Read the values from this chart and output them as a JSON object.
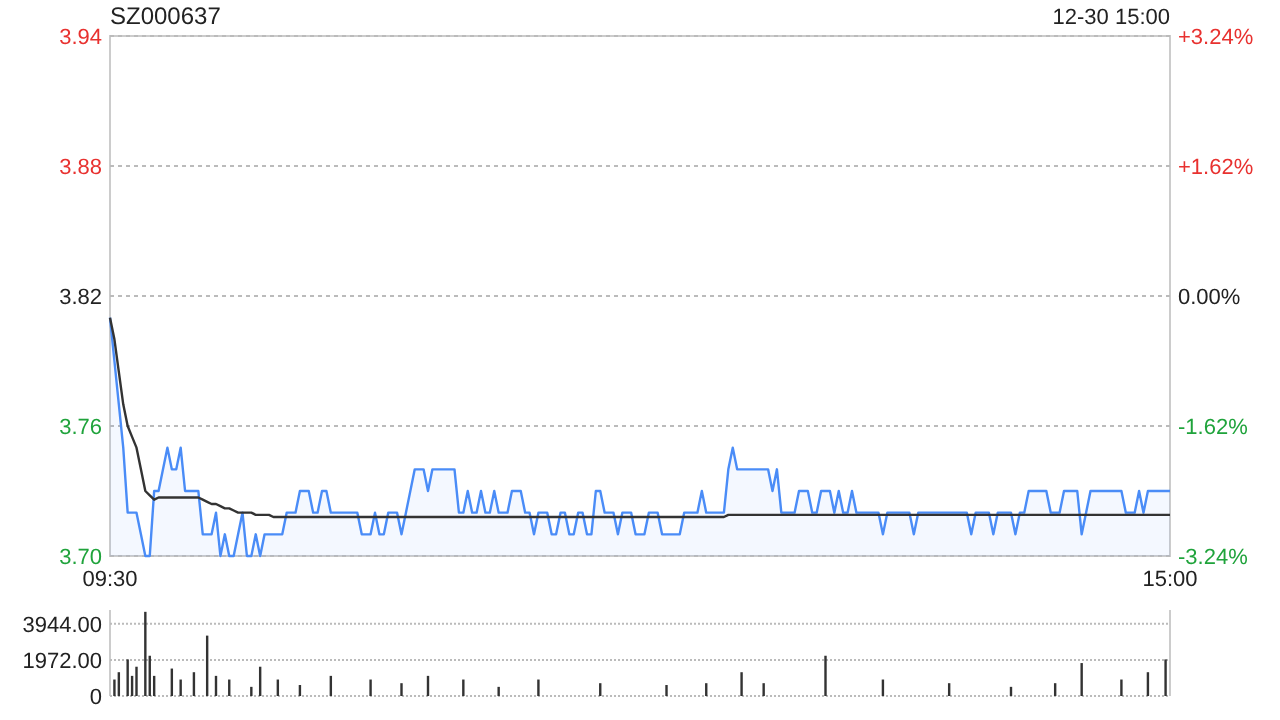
{
  "chart_data": [
    {
      "type": "line",
      "title": "SZ000637",
      "annotations": [
        "12-30 15:00"
      ],
      "categories": [
        "09:30",
        null,
        null,
        null,
        null,
        null,
        null,
        null,
        null,
        null,
        null,
        null,
        null,
        null,
        null,
        null,
        null,
        null,
        null,
        null,
        null,
        null,
        null,
        null,
        null,
        null,
        null,
        null,
        null,
        null,
        null,
        null,
        null,
        null,
        null,
        null,
        null,
        null,
        null,
        null,
        null,
        null,
        null,
        null,
        null,
        null,
        null,
        null,
        null,
        null,
        null,
        null,
        null,
        null,
        null,
        null,
        null,
        null,
        null,
        null,
        null,
        null,
        null,
        null,
        null,
        null,
        null,
        null,
        null,
        null,
        null,
        null,
        null,
        null,
        null,
        null,
        null,
        null,
        null,
        null,
        null,
        null,
        null,
        null,
        null,
        null,
        null,
        null,
        null,
        null,
        null,
        null,
        null,
        null,
        null,
        null,
        null,
        null,
        null,
        null,
        null,
        null,
        null,
        null,
        null,
        null,
        null,
        null,
        null,
        null,
        null,
        null,
        null,
        null,
        null,
        null,
        null,
        null,
        null,
        null,
        null,
        null,
        null,
        null,
        null,
        null,
        null,
        null,
        null,
        null,
        null,
        null,
        null,
        null,
        null,
        null,
        null,
        null,
        null,
        null,
        null,
        null,
        null,
        null,
        null,
        null,
        null,
        null,
        null,
        null,
        null,
        null,
        null,
        null,
        null,
        null,
        null,
        null,
        null,
        null,
        null,
        null,
        null,
        null,
        null,
        null,
        null,
        null,
        null,
        null,
        null,
        null,
        null,
        null,
        null,
        null,
        null,
        null,
        null,
        null,
        null,
        null,
        null,
        null,
        null,
        null,
        null,
        null,
        null,
        null,
        null,
        null,
        null,
        null,
        null,
        null,
        null,
        null,
        null,
        null,
        null,
        null,
        null,
        null,
        null,
        null,
        null,
        null,
        null,
        null,
        null,
        null,
        null,
        null,
        null,
        null,
        null,
        null,
        null,
        null,
        null,
        null,
        null,
        null,
        null,
        null,
        null,
        null,
        null,
        null,
        null,
        null,
        null,
        null,
        null,
        null,
        null,
        null,
        null,
        null,
        "15:00"
      ],
      "ylim": [
        3.7,
        3.94
      ],
      "yticks": [
        {
          "value": 3.7,
          "label": "3.70"
        },
        3.76,
        3.82,
        3.88,
        3.94
      ],
      "y2lim": [
        -3.24,
        3.24
      ],
      "y2ticks": [
        {
          "value": -3.24,
          "label": "-3.24%"
        },
        {
          "value": -1.62,
          "label": "-1.62%"
        },
        {
          "value": 0,
          "label": "0.00%"
        },
        {
          "value": 1.62,
          "label": "+1.62%"
        },
        {
          "value": 3.24,
          "label": "+3.24%"
        }
      ],
      "grid": "y",
      "series": [
        {
          "type": "area",
          "color": "#4a8cf7",
          "values": [
            3.81,
            3.79,
            3.77,
            3.75,
            3.72,
            3.72,
            3.72,
            3.71,
            3.7,
            3.7,
            3.73,
            3.73,
            3.74,
            3.75,
            3.74,
            3.74,
            3.75,
            3.73,
            3.73,
            3.73,
            3.73,
            3.71,
            3.71,
            3.71,
            3.72,
            3.7,
            3.71,
            3.7,
            3.7,
            3.71,
            3.72,
            3.7,
            3.7,
            3.71,
            3.7,
            3.71,
            3.71,
            3.71,
            3.71,
            3.71,
            3.72,
            3.72,
            3.72,
            3.73,
            3.73,
            3.73,
            3.72,
            3.72,
            3.73,
            3.73,
            3.72,
            3.72,
            3.72,
            3.72,
            3.72,
            3.72,
            3.72,
            3.71,
            3.71,
            3.71,
            3.72,
            3.71,
            3.71,
            3.72,
            3.72,
            3.72,
            3.71,
            3.72,
            3.73,
            3.74,
            3.74,
            3.74,
            3.73,
            3.74,
            3.74,
            3.74,
            3.74,
            3.74,
            3.74,
            3.72,
            3.72,
            3.73,
            3.72,
            3.72,
            3.73,
            3.72,
            3.72,
            3.73,
            3.72,
            3.72,
            3.72,
            3.73,
            3.73,
            3.73,
            3.72,
            3.72,
            3.71,
            3.72,
            3.72,
            3.72,
            3.71,
            3.71,
            3.72,
            3.72,
            3.71,
            3.71,
            3.72,
            3.72,
            3.71,
            3.71,
            3.73,
            3.73,
            3.72,
            3.72,
            3.72,
            3.71,
            3.72,
            3.72,
            3.72,
            3.71,
            3.71,
            3.71,
            3.72,
            3.72,
            3.72,
            3.71,
            3.71,
            3.71,
            3.71,
            3.71,
            3.72,
            3.72,
            3.72,
            3.72,
            3.73,
            3.72,
            3.72,
            3.72,
            3.72,
            3.72,
            3.74,
            3.75,
            3.74,
            3.74,
            3.74,
            3.74,
            3.74,
            3.74,
            3.74,
            3.74,
            3.73,
            3.74,
            3.72,
            3.72,
            3.72,
            3.72,
            3.73,
            3.73,
            3.73,
            3.72,
            3.72,
            3.73,
            3.73,
            3.73,
            3.72,
            3.73,
            3.72,
            3.72,
            3.73,
            3.72,
            3.72,
            3.72,
            3.72,
            3.72,
            3.72,
            3.71,
            3.72,
            3.72,
            3.72,
            3.72,
            3.72,
            3.72,
            3.71,
            3.72,
            3.72,
            3.72,
            3.72,
            3.72,
            3.72,
            3.72,
            3.72,
            3.72,
            3.72,
            3.72,
            3.72,
            3.71,
            3.72,
            3.72,
            3.72,
            3.72,
            3.71,
            3.72,
            3.72,
            3.72,
            3.72,
            3.71,
            3.72,
            3.72,
            3.73,
            3.73,
            3.73,
            3.73,
            3.73,
            3.72,
            3.72,
            3.72,
            3.73,
            3.73,
            3.73,
            3.73,
            3.71,
            3.72,
            3.73,
            3.73,
            3.73,
            3.73,
            3.73,
            3.73,
            3.73,
            3.73,
            3.72,
            3.72,
            3.72,
            3.73,
            3.72,
            3.73,
            3.73,
            3.73,
            3.73,
            3.73,
            3.73
          ]
        },
        {
          "type": "line",
          "color": "#333333",
          "values": [
            3.81,
            3.8,
            3.785,
            3.77,
            3.76,
            3.755,
            3.75,
            3.74,
            3.73,
            3.728,
            3.726,
            3.727,
            3.727,
            3.727,
            3.727,
            3.727,
            3.727,
            3.727,
            3.727,
            3.727,
            3.727,
            3.726,
            3.725,
            3.724,
            3.724,
            3.723,
            3.722,
            3.722,
            3.721,
            3.72,
            3.72,
            3.72,
            3.72,
            3.719,
            3.719,
            3.719,
            3.719,
            3.718,
            3.718,
            3.718,
            3.718,
            3.718,
            3.718,
            3.718,
            3.718,
            3.718,
            3.718,
            3.718,
            3.718,
            3.718,
            3.718,
            3.718,
            3.718,
            3.718,
            3.718,
            3.718,
            3.718,
            3.718,
            3.718,
            3.718,
            3.718,
            3.718,
            3.718,
            3.718,
            3.718,
            3.718,
            3.718,
            3.718,
            3.718,
            3.718,
            3.718,
            3.718,
            3.718,
            3.718,
            3.718,
            3.718,
            3.718,
            3.718,
            3.718,
            3.718,
            3.718,
            3.718,
            3.718,
            3.718,
            3.718,
            3.718,
            3.718,
            3.718,
            3.718,
            3.718,
            3.718,
            3.718,
            3.718,
            3.718,
            3.718,
            3.718,
            3.718,
            3.718,
            3.718,
            3.718,
            3.718,
            3.718,
            3.718,
            3.718,
            3.718,
            3.718,
            3.718,
            3.718,
            3.718,
            3.718,
            3.718,
            3.718,
            3.718,
            3.718,
            3.718,
            3.718,
            3.718,
            3.718,
            3.718,
            3.718,
            3.718,
            3.718,
            3.718,
            3.718,
            3.718,
            3.718,
            3.718,
            3.718,
            3.718,
            3.718,
            3.718,
            3.718,
            3.718,
            3.718,
            3.718,
            3.718,
            3.718,
            3.718,
            3.718,
            3.718,
            3.719,
            3.719,
            3.719,
            3.719,
            3.719,
            3.719,
            3.719,
            3.719,
            3.719,
            3.719,
            3.719,
            3.719,
            3.719,
            3.719,
            3.719,
            3.719,
            3.719,
            3.719,
            3.719,
            3.719,
            3.719,
            3.719,
            3.719,
            3.719,
            3.719,
            3.719,
            3.719,
            3.719,
            3.719,
            3.719,
            3.719,
            3.719,
            3.719,
            3.719,
            3.719,
            3.719,
            3.719,
            3.719,
            3.719,
            3.719,
            3.719,
            3.719,
            3.719,
            3.719,
            3.719,
            3.719,
            3.719,
            3.719,
            3.719,
            3.719,
            3.719,
            3.719,
            3.719,
            3.719,
            3.719,
            3.719,
            3.719,
            3.719,
            3.719,
            3.719,
            3.719,
            3.719,
            3.719,
            3.719,
            3.719,
            3.719,
            3.719,
            3.719,
            3.719,
            3.719,
            3.719,
            3.719,
            3.719,
            3.719,
            3.719,
            3.719,
            3.719,
            3.719,
            3.719,
            3.719,
            3.719,
            3.719,
            3.719,
            3.719,
            3.719,
            3.719,
            3.719,
            3.719,
            3.719,
            3.719,
            3.719,
            3.719,
            3.719,
            3.719,
            3.719,
            3.719,
            3.719,
            3.719,
            3.719,
            3.719,
            3.719
          ]
        }
      ]
    },
    {
      "type": "bar",
      "color": "#333333",
      "tick_labels": "y",
      "ylim": [
        0,
        4700
      ],
      "yticks": [
        0,
        {
          "value": 1972,
          "label": "1972.00"
        },
        {
          "value": 3944,
          "label": "3944.00"
        }
      ],
      "grid": "y",
      "categories": [
        null,
        null,
        null,
        null,
        null,
        null,
        null,
        null,
        null,
        null,
        null,
        null,
        null,
        null,
        null,
        null,
        null,
        null,
        null,
        null,
        null,
        null,
        null,
        null,
        null,
        null,
        null,
        null,
        null,
        null,
        null,
        null,
        null,
        null,
        null,
        null,
        null,
        null,
        null,
        null,
        null,
        null,
        null,
        null,
        null,
        null,
        null,
        null,
        null,
        null,
        null,
        null,
        null,
        null,
        null,
        null,
        null,
        null,
        null,
        null,
        null,
        null,
        null,
        null,
        null,
        null,
        null,
        null,
        null,
        null,
        null,
        null,
        null,
        null,
        null,
        null,
        null,
        null,
        null,
        null,
        null,
        null,
        null,
        null,
        null,
        null,
        null,
        null,
        null,
        null,
        null,
        null,
        null,
        null,
        null,
        null,
        null,
        null,
        null,
        null,
        null,
        null,
        null,
        null,
        null,
        null,
        null,
        null,
        null,
        null,
        null,
        null,
        null,
        null,
        null,
        null,
        null,
        null,
        null,
        null,
        null,
        null,
        null,
        null,
        null,
        null,
        null,
        null,
        null,
        null,
        null,
        null,
        null,
        null,
        null,
        null,
        null,
        null,
        null,
        null,
        null,
        null,
        null,
        null,
        null,
        null,
        null,
        null,
        null,
        null,
        null,
        null,
        null,
        null,
        null,
        null,
        null,
        null,
        null,
        null,
        null,
        null,
        null,
        null,
        null,
        null,
        null,
        null,
        null,
        null,
        null,
        null,
        null,
        null,
        null,
        null,
        null,
        null,
        null,
        null,
        null,
        null,
        null,
        null,
        null,
        null,
        null,
        null,
        null,
        null,
        null,
        null,
        null,
        null,
        null,
        null,
        null,
        null,
        null,
        null,
        null,
        null,
        null,
        null,
        null,
        null,
        null,
        null,
        null,
        null,
        null,
        null,
        null,
        null,
        null,
        null,
        null,
        null,
        null,
        null,
        null,
        null,
        null,
        null,
        null,
        null,
        null,
        null,
        null,
        null,
        null,
        null,
        null,
        null,
        null,
        null,
        null,
        null,
        null,
        null,
        null
      ],
      "values": [
        null,
        900,
        1300,
        null,
        2000,
        1100,
        1600,
        null,
        4600,
        2200,
        1100,
        null,
        null,
        null,
        1500,
        null,
        900,
        null,
        null,
        1300,
        null,
        null,
        3300,
        null,
        1100,
        null,
        null,
        900,
        null,
        null,
        null,
        null,
        500,
        null,
        1600,
        null,
        null,
        null,
        900,
        null,
        null,
        null,
        null,
        600,
        null,
        null,
        null,
        null,
        null,
        null,
        1100,
        null,
        null,
        null,
        null,
        null,
        null,
        null,
        null,
        900,
        null,
        null,
        null,
        null,
        null,
        null,
        700,
        null,
        null,
        null,
        null,
        null,
        1100,
        null,
        null,
        null,
        null,
        null,
        null,
        null,
        900,
        null,
        null,
        null,
        null,
        null,
        null,
        null,
        500,
        null,
        null,
        null,
        null,
        null,
        null,
        null,
        null,
        900,
        null,
        null,
        null,
        null,
        null,
        null,
        null,
        null,
        null,
        null,
        null,
        null,
        null,
        700,
        null,
        null,
        null,
        null,
        null,
        null,
        null,
        null,
        null,
        null,
        null,
        null,
        null,
        null,
        600,
        null,
        null,
        null,
        null,
        null,
        null,
        null,
        null,
        700,
        null,
        null,
        null,
        null,
        null,
        null,
        null,
        1300,
        null,
        null,
        null,
        null,
        700,
        null,
        null,
        null,
        null,
        null,
        null,
        null,
        null,
        null,
        null,
        null,
        null,
        null,
        2200,
        null,
        null,
        null,
        null,
        null,
        null,
        null,
        null,
        null,
        null,
        null,
        null,
        900,
        null,
        null,
        null,
        null,
        null,
        null,
        null,
        null,
        null,
        null,
        null,
        null,
        null,
        null,
        700,
        null,
        null,
        null,
        null,
        null,
        null,
        null,
        null,
        null,
        null,
        null,
        null,
        null,
        500,
        null,
        null,
        null,
        null,
        null,
        null,
        null,
        null,
        null,
        700,
        null,
        null,
        null,
        null,
        null,
        1800,
        null,
        null,
        null,
        null,
        null,
        null,
        null,
        null,
        900,
        null,
        null,
        null,
        null,
        null,
        1300,
        null,
        null,
        null,
        2000,
        null
      ]
    }
  ]
}
